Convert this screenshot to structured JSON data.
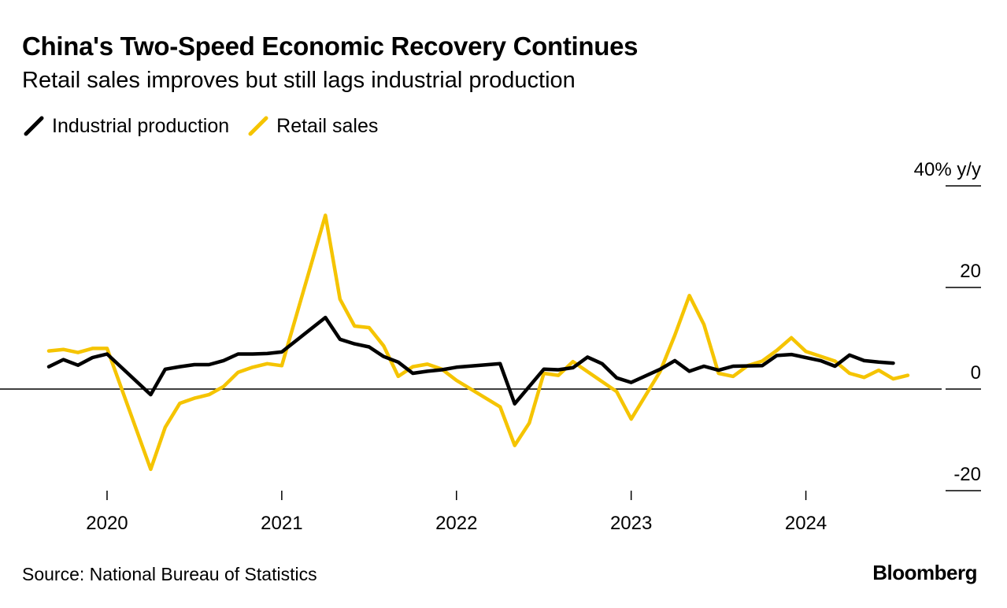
{
  "header": {
    "title": "China's Two-Speed Economic Recovery Continues",
    "subtitle": "Retail sales improves but still lags industrial production"
  },
  "footer": {
    "source": "Source: National Bureau of Statistics",
    "brand": "Bloomberg"
  },
  "chart_data": {
    "type": "line",
    "title": "China's Two-Speed Economic Recovery Continues",
    "subtitle": "Retail sales improves but still lags industrial production",
    "xlabel": "",
    "ylabel": "% y/y",
    "ylim": [
      -20,
      40
    ],
    "y_ticks": [
      {
        "value": 40,
        "label": "40% y/y"
      },
      {
        "value": 20,
        "label": "20"
      },
      {
        "value": 0,
        "label": "0"
      },
      {
        "value": -20,
        "label": "-20"
      }
    ],
    "x_ticks": [
      {
        "month_index": 4,
        "label": "2020"
      },
      {
        "month_index": 16,
        "label": "2021"
      },
      {
        "month_index": 28,
        "label": "2022"
      },
      {
        "month_index": 40,
        "label": "2023"
      },
      {
        "month_index": 52,
        "label": "2024"
      }
    ],
    "x_domain": [
      0,
      59
    ],
    "x_start": "Aug 2019",
    "x_end": "Jul 2024",
    "legend_position": "top-left",
    "series": [
      {
        "name": "Industrial production",
        "color": "#000000",
        "points": [
          [
            0,
            4.4
          ],
          [
            1,
            5.8
          ],
          [
            2,
            4.7
          ],
          [
            3,
            6.2
          ],
          [
            4,
            6.9
          ],
          [
            7,
            -1.1
          ],
          [
            8,
            3.9
          ],
          [
            9,
            4.4
          ],
          [
            10,
            4.8
          ],
          [
            11,
            4.8
          ],
          [
            12,
            5.6
          ],
          [
            13,
            6.9
          ],
          [
            14,
            6.9
          ],
          [
            15,
            7.0
          ],
          [
            16,
            7.3
          ],
          [
            19,
            14.1
          ],
          [
            20,
            9.8
          ],
          [
            21,
            8.9
          ],
          [
            22,
            8.3
          ],
          [
            23,
            6.4
          ],
          [
            24,
            5.3
          ],
          [
            25,
            3.1
          ],
          [
            26,
            3.5
          ],
          [
            27,
            3.8
          ],
          [
            28,
            4.3
          ],
          [
            31,
            5.0
          ],
          [
            32,
            -2.9
          ],
          [
            34,
            3.9
          ],
          [
            35,
            3.8
          ],
          [
            36,
            4.2
          ],
          [
            37,
            6.3
          ],
          [
            38,
            5.0
          ],
          [
            39,
            2.2
          ],
          [
            40,
            1.3
          ],
          [
            42,
            3.9
          ],
          [
            43,
            5.6
          ],
          [
            44,
            3.5
          ],
          [
            45,
            4.5
          ],
          [
            46,
            3.7
          ],
          [
            47,
            4.5
          ],
          [
            49,
            4.6
          ],
          [
            50,
            6.6
          ],
          [
            51,
            6.8
          ],
          [
            53,
            5.6
          ],
          [
            54,
            4.5
          ],
          [
            55,
            6.7
          ],
          [
            56,
            5.6
          ],
          [
            57,
            5.3
          ],
          [
            58,
            5.1
          ]
        ]
      },
      {
        "name": "Retail sales",
        "color": "#f5c400",
        "points": [
          [
            0,
            7.5
          ],
          [
            1,
            7.8
          ],
          [
            2,
            7.2
          ],
          [
            3,
            8.0
          ],
          [
            4,
            8.0
          ],
          [
            7,
            -15.8
          ],
          [
            8,
            -7.5
          ],
          [
            9,
            -2.8
          ],
          [
            10,
            -1.8
          ],
          [
            11,
            -1.1
          ],
          [
            12,
            0.5
          ],
          [
            13,
            3.3
          ],
          [
            14,
            4.3
          ],
          [
            15,
            5.0
          ],
          [
            16,
            4.6
          ],
          [
            19,
            34.2
          ],
          [
            20,
            17.7
          ],
          [
            21,
            12.4
          ],
          [
            22,
            12.1
          ],
          [
            23,
            8.5
          ],
          [
            24,
            2.5
          ],
          [
            25,
            4.4
          ],
          [
            26,
            4.9
          ],
          [
            27,
            3.9
          ],
          [
            28,
            1.7
          ],
          [
            31,
            -3.5
          ],
          [
            32,
            -11.1
          ],
          [
            33,
            -6.7
          ],
          [
            34,
            3.1
          ],
          [
            35,
            2.7
          ],
          [
            36,
            5.4
          ],
          [
            39,
            -0.5
          ],
          [
            40,
            -5.9
          ],
          [
            42,
            3.5
          ],
          [
            43,
            10.6
          ],
          [
            44,
            18.4
          ],
          [
            45,
            12.7
          ],
          [
            46,
            3.1
          ],
          [
            47,
            2.5
          ],
          [
            48,
            4.6
          ],
          [
            49,
            5.5
          ],
          [
            50,
            7.6
          ],
          [
            51,
            10.1
          ],
          [
            52,
            7.4
          ],
          [
            54,
            5.5
          ],
          [
            55,
            3.1
          ],
          [
            56,
            2.3
          ],
          [
            57,
            3.7
          ],
          [
            58,
            2.0
          ],
          [
            59,
            2.7
          ]
        ]
      }
    ]
  }
}
